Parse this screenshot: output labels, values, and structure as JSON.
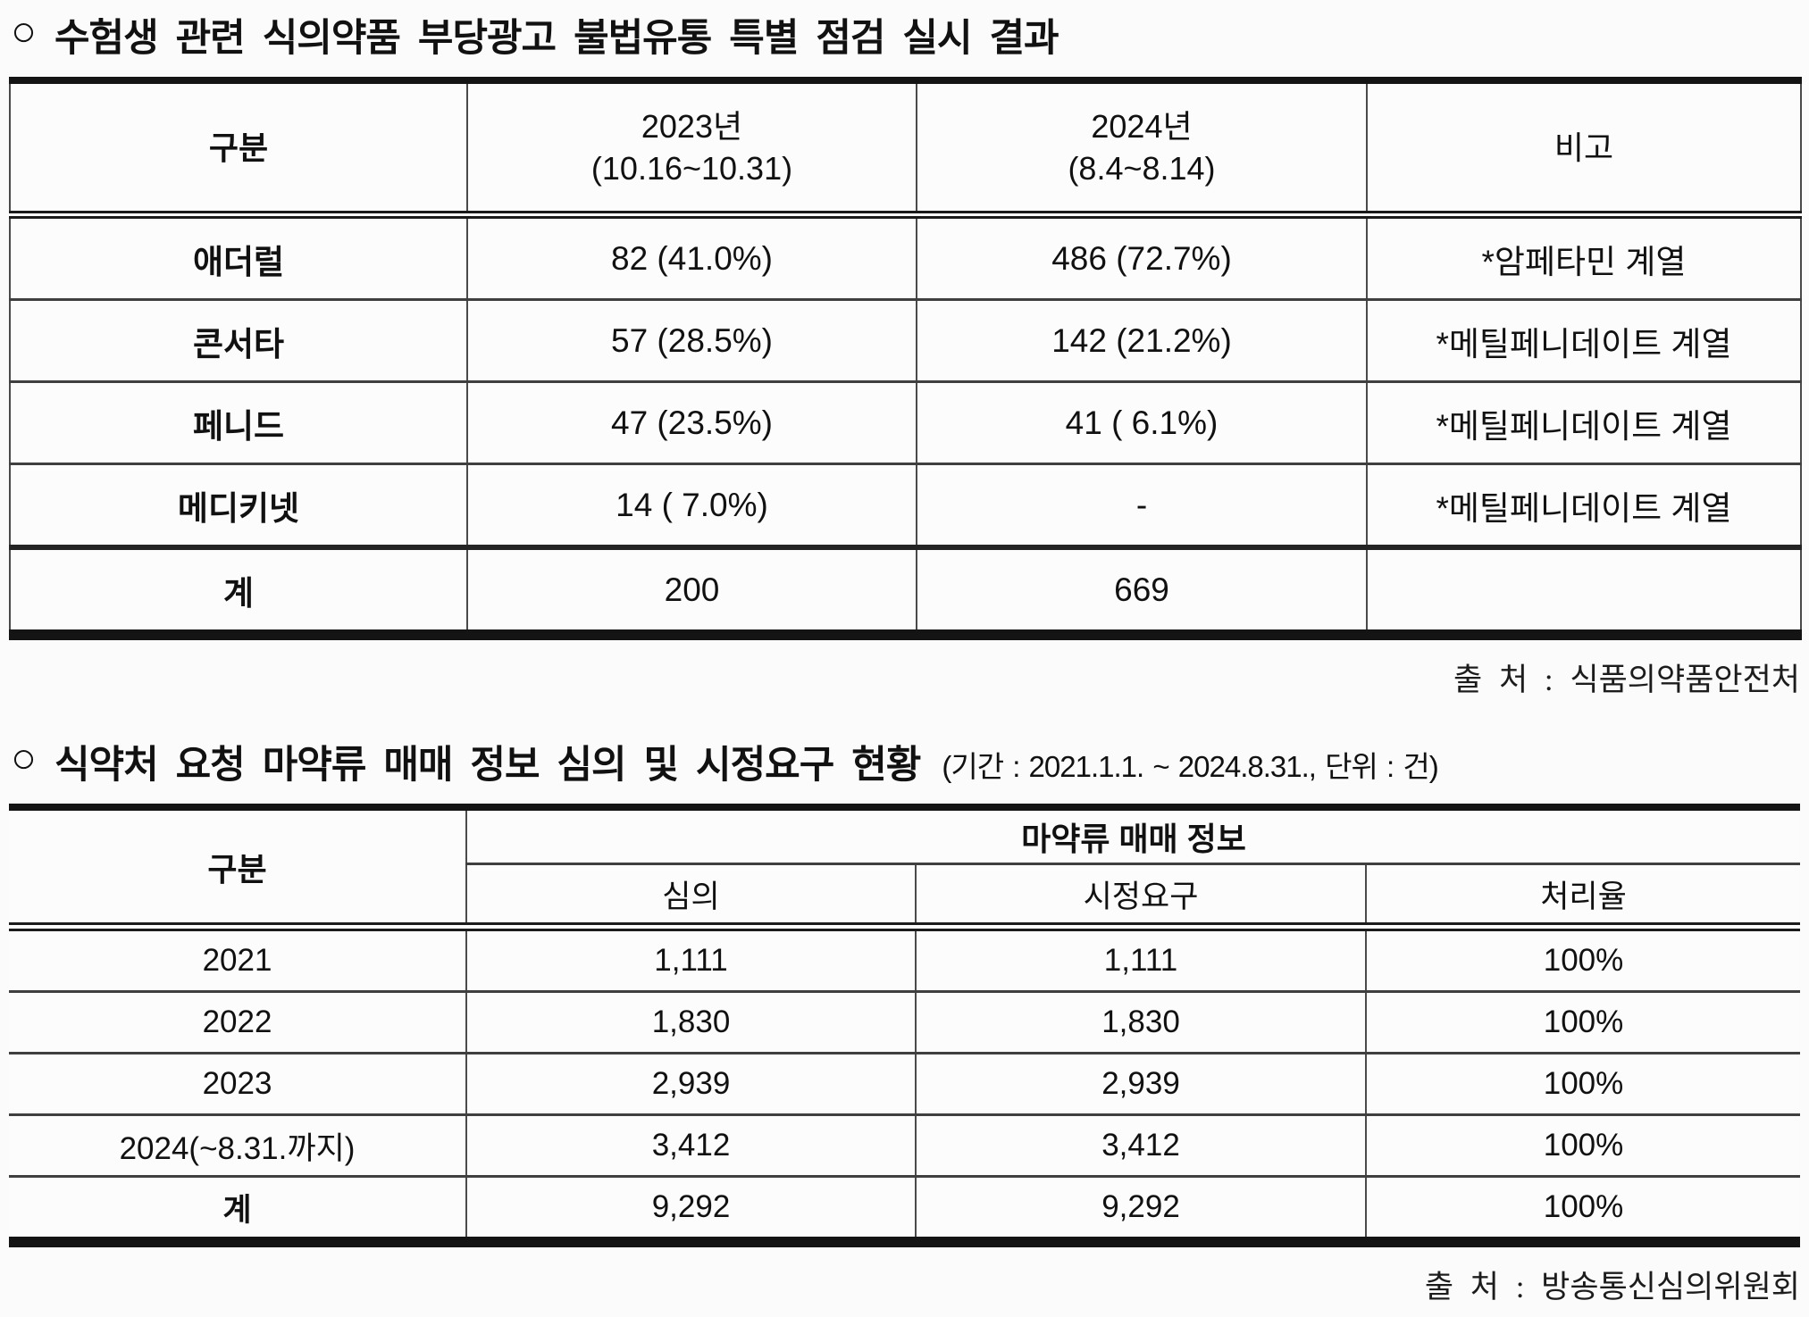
{
  "colors": {
    "ink": "#111111",
    "line_thick": "#141414",
    "line_thin": "#3f3f3f",
    "background": "#fbfbfb"
  },
  "section1": {
    "bullet": "○",
    "title": "수험생 관련 식의약품 부당광고 불법유통 특별 점검 실시 결과",
    "table": {
      "headers": {
        "category": "구분",
        "y2023_line1": "2023년",
        "y2023_line2": "(10.16~10.31)",
        "y2024_line1": "2024년",
        "y2024_line2": "(8.4~8.14)",
        "note": "비고"
      },
      "rows": [
        {
          "label": "애더럴",
          "y2023": "82 (41.0%)",
          "y2024": "486 (72.7%)",
          "note": "*암페타민 계열"
        },
        {
          "label": "콘서타",
          "y2023": "57 (28.5%)",
          "y2024": "142 (21.2%)",
          "note": "*메틸페니데이트 계열"
        },
        {
          "label": "페니드",
          "y2023": "47 (23.5%)",
          "y2024": "41 ( 6.1%)",
          "note": "*메틸페니데이트 계열"
        },
        {
          "label": "메디키넷",
          "y2023": "14 ( 7.0%)",
          "y2024": "-",
          "note": "*메틸페니데이트 계열"
        }
      ],
      "total": {
        "label": "계",
        "y2023": "200",
        "y2024": "669",
        "note": ""
      }
    },
    "source": "출 처 : 식품의약품안전처"
  },
  "section2": {
    "bullet": "○",
    "title": "식약처 요청 마약류 매매 정보 심의 및 시정요구 현황",
    "title_note": "(기간 : 2021.1.1. ~ 2024.8.31., 단위 : 건)",
    "table": {
      "headers": {
        "category": "구분",
        "group": "마약류 매매 정보",
        "sub": [
          "심의",
          "시정요구",
          "처리율"
        ]
      },
      "rows": [
        {
          "label": "2021",
          "review": "1,111",
          "correction": "1,111",
          "rate": "100%"
        },
        {
          "label": "2022",
          "review": "1,830",
          "correction": "1,830",
          "rate": "100%"
        },
        {
          "label": "2023",
          "review": "2,939",
          "correction": "2,939",
          "rate": "100%"
        },
        {
          "label": "2024(~8.31.까지)",
          "review": "3,412",
          "correction": "3,412",
          "rate": "100%"
        },
        {
          "label": "계",
          "review": "9,292",
          "correction": "9,292",
          "rate": "100%"
        }
      ]
    },
    "source": "출 처 : 방송통신심의위원회"
  }
}
